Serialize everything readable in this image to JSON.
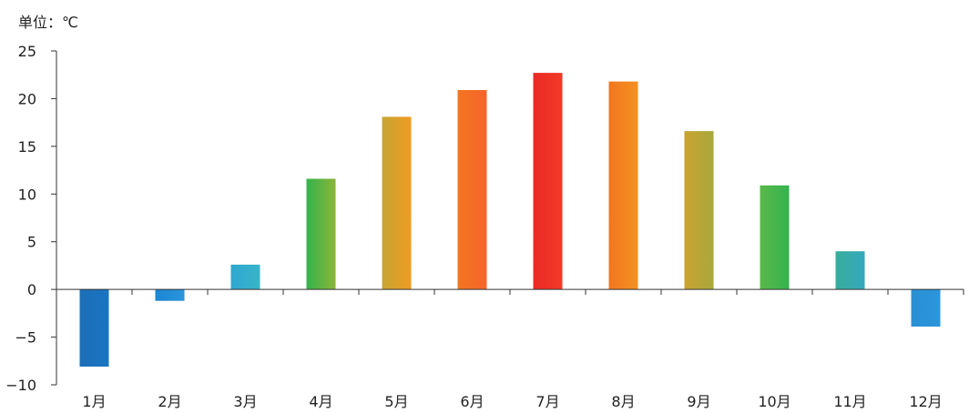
{
  "chart_data": {
    "type": "bar",
    "unit_label": "单位：℃",
    "categories": [
      "1月",
      "2月",
      "3月",
      "4月",
      "5月",
      "6月",
      "7月",
      "8月",
      "9月",
      "10月",
      "11月",
      "12月"
    ],
    "values": [
      -8.1,
      -1.2,
      2.6,
      11.6,
      18.1,
      20.9,
      22.7,
      21.8,
      16.6,
      10.9,
      4.0,
      -3.9
    ],
    "ylim": [
      -10,
      25
    ],
    "yticks": [
      25,
      20,
      15,
      10,
      5,
      0,
      -5,
      -10
    ],
    "ytick_labels": [
      "25",
      "20",
      "15",
      "10",
      "5",
      "0",
      "−5",
      "−10"
    ],
    "bar_colors": [
      [
        "#1d6eb8",
        "#1a75c2"
      ],
      [
        "#1b86d2",
        "#2a95dc"
      ],
      [
        "#2fa8d0",
        "#39b4c9"
      ],
      [
        "#34b44c",
        "#8bb43a"
      ],
      [
        "#c6a634",
        "#ef9b21"
      ],
      [
        "#f37621",
        "#f5642a"
      ],
      [
        "#ea2a25",
        "#f13a28"
      ],
      [
        "#f3761f",
        "#f39121"
      ],
      [
        "#c9a330",
        "#a9a83d"
      ],
      [
        "#5ab84a",
        "#35b34f"
      ],
      [
        "#36ad9c",
        "#36a8bd"
      ],
      [
        "#2a8fd3",
        "#2a96dc"
      ]
    ],
    "grid": false
  }
}
